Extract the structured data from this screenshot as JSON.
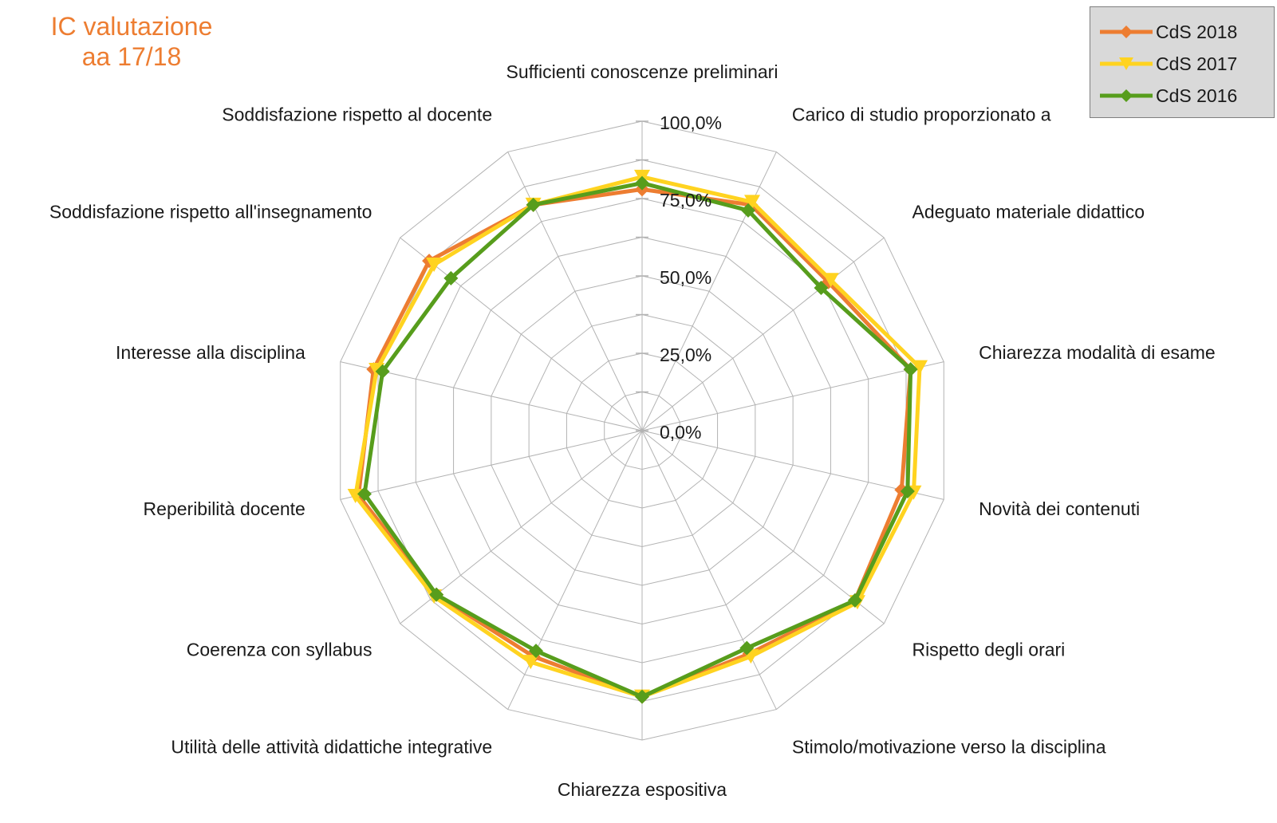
{
  "title": {
    "line1": "IC valutazione",
    "line2": "aa 17/18"
  },
  "colors": {
    "title": "#ed7d31",
    "grid": "#b3b3b3"
  },
  "legend_title": "",
  "chart_data": {
    "type": "radar",
    "title": "IC valutazione aa 17/18",
    "categories": [
      "Sufficienti conoscenze preliminari",
      "Carico di studio proporzionato ai crediti",
      "Adeguato materiale didattico",
      "Chiarezza modalità di esame",
      "Novità dei contenuti",
      "Rispetto degli orari",
      "Stimolo/motivazione verso la disciplina",
      "Chiarezza espositiva",
      "Utilità delle attività didattiche integrative",
      "Coerenza con syllabus",
      "Reperibilità docente",
      "Interesse alla disciplina",
      "Soddisfazione rispetto all'insegnamento",
      "Soddisfazione rispetto al docente"
    ],
    "axis_label_text": [
      "Sufficienti conoscenze preliminari",
      "Carico di studio proporzionato a",
      "Adeguato materiale didattico",
      "Chiarezza modalità di esame",
      "Novità dei contenuti",
      "Rispetto degli orari",
      "Stimolo/motivazione verso la disciplina",
      "Chiarezza espositiva",
      "Utilità delle attività didattiche integrative",
      "Coerenza con syllabus",
      "Reperibilità docente",
      "Interesse alla disciplina",
      "Soddisfazione rispetto all'insegnamento",
      "Soddisfazione rispetto al docente"
    ],
    "rmin": 0,
    "rmax": 100,
    "ticks": [
      "0,0%",
      "25,0%",
      "50,0%",
      "75,0%",
      "100,0%"
    ],
    "grid": true,
    "legend_position": "top-right",
    "series": [
      {
        "name": "CdS 2018",
        "color": "#ed7d31",
        "marker": "diamond",
        "values": [
          78,
          81,
          77,
          89,
          86,
          88,
          80,
          86,
          81,
          85,
          94,
          89,
          88,
          81
        ]
      },
      {
        "name": "CdS 2017",
        "color": "#ffd320",
        "marker": "triangle",
        "values": [
          82,
          82,
          78,
          92,
          90,
          89,
          81,
          86,
          83,
          86,
          95,
          88,
          86,
          81
        ]
      },
      {
        "name": "CdS 2016",
        "color": "#579d1c",
        "marker": "diamond",
        "values": [
          80,
          79,
          74,
          89,
          88,
          88,
          78,
          86,
          79,
          85,
          92,
          86,
          79,
          81
        ]
      }
    ]
  }
}
